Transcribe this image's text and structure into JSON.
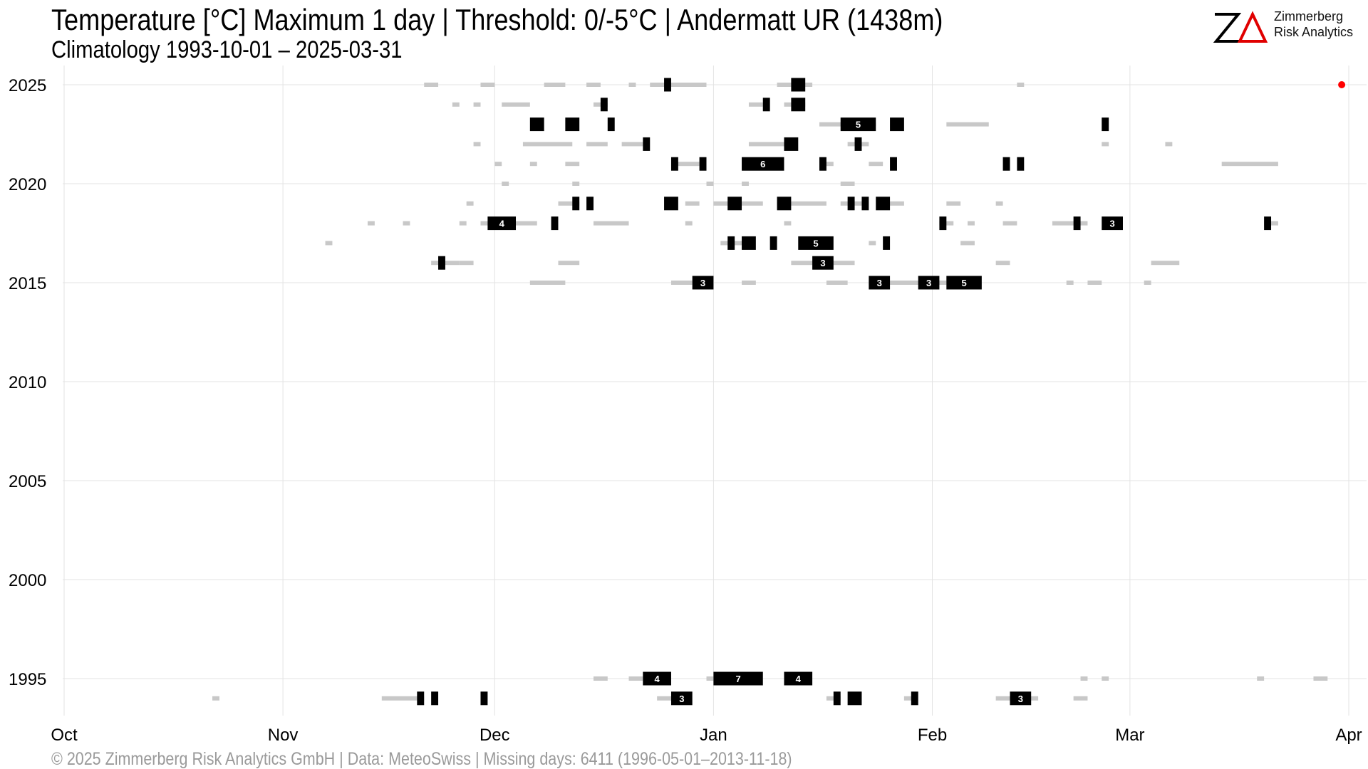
{
  "header": {
    "title": "Temperature [°C] Maximum 1 day | Threshold: 0/-5°C | Andermatt  UR (1438m)",
    "subtitle": "Climatology 1993-10-01 – 2025-03-31"
  },
  "logo": {
    "mark": "ZΔ",
    "line1": "Zimmerberg",
    "line2": "Risk Analytics"
  },
  "footer": {
    "text": "©  2025 Zimmerberg Risk Analytics GmbH | Data: MeteoSwiss | Missing days: 6411 (1996-05-01–2013-11-18)"
  },
  "colors": {
    "major": "#000000",
    "minor": "#c8c8c8",
    "grid": "#e3e3e3",
    "latest": "#ff0000",
    "label": "#ffffff"
  },
  "chart_data": {
    "type": "timeline",
    "x_axis": {
      "ticks": [
        "Oct",
        "Nov",
        "Dec",
        "Jan",
        "Feb",
        "Mar",
        "Apr"
      ],
      "tick_days": [
        0,
        31,
        61,
        92,
        123,
        151,
        182
      ],
      "range_days": [
        0,
        182
      ]
    },
    "y_axis": {
      "ticks": [
        1995,
        2000,
        2005,
        2010,
        2015,
        2020,
        2025
      ],
      "range": [
        1993.3,
        2025.6
      ]
    },
    "grid": true,
    "latest_point": {
      "season": 2025,
      "day": 181
    },
    "series": [
      {
        "name": "0°C",
        "style": "minor",
        "events": [
          [
            2025,
            51,
            53
          ],
          [
            2025,
            59,
            61
          ],
          [
            2025,
            68,
            71
          ],
          [
            2025,
            74,
            76
          ],
          [
            2025,
            80,
            81
          ],
          [
            2025,
            83,
            91
          ],
          [
            2025,
            101,
            106
          ],
          [
            2025,
            135,
            136
          ],
          [
            2024,
            55,
            56
          ],
          [
            2024,
            58,
            59
          ],
          [
            2024,
            62,
            66
          ],
          [
            2024,
            75,
            77
          ],
          [
            2024,
            97,
            99
          ],
          [
            2024,
            102,
            105
          ],
          [
            2023,
            107,
            115
          ],
          [
            2023,
            125,
            131
          ],
          [
            2022,
            58,
            59
          ],
          [
            2022,
            65,
            72
          ],
          [
            2022,
            74,
            77
          ],
          [
            2022,
            79,
            82
          ],
          [
            2022,
            97,
            102
          ],
          [
            2022,
            111,
            114
          ],
          [
            2022,
            147,
            148
          ],
          [
            2022,
            156,
            157
          ],
          [
            2021,
            61,
            62
          ],
          [
            2021,
            66,
            67
          ],
          [
            2021,
            71,
            73
          ],
          [
            2021,
            86,
            90
          ],
          [
            2021,
            97,
            99
          ],
          [
            2021,
            107,
            109
          ],
          [
            2021,
            114,
            116
          ],
          [
            2021,
            164,
            172
          ],
          [
            2020,
            62,
            63
          ],
          [
            2020,
            72,
            73
          ],
          [
            2020,
            91,
            92
          ],
          [
            2020,
            96,
            97
          ],
          [
            2020,
            110,
            112
          ],
          [
            2019,
            57,
            58
          ],
          [
            2019,
            70,
            73
          ],
          [
            2019,
            88,
            90
          ],
          [
            2019,
            92,
            99
          ],
          [
            2019,
            101,
            108
          ],
          [
            2019,
            110,
            113
          ],
          [
            2019,
            116,
            119
          ],
          [
            2019,
            125,
            127
          ],
          [
            2019,
            132,
            133
          ],
          [
            2018,
            43,
            44
          ],
          [
            2018,
            48,
            49
          ],
          [
            2018,
            56,
            57
          ],
          [
            2018,
            59,
            67
          ],
          [
            2018,
            75,
            80
          ],
          [
            2018,
            88,
            89
          ],
          [
            2018,
            102,
            103
          ],
          [
            2018,
            124,
            126
          ],
          [
            2018,
            128,
            129
          ],
          [
            2018,
            133,
            135
          ],
          [
            2018,
            140,
            145
          ],
          [
            2018,
            149,
            150
          ],
          [
            2018,
            170,
            172
          ],
          [
            2017,
            37,
            38
          ],
          [
            2017,
            93,
            97
          ],
          [
            2017,
            114,
            115
          ],
          [
            2017,
            127,
            129
          ],
          [
            2016,
            52,
            56
          ],
          [
            2016,
            56,
            58
          ],
          [
            2016,
            70,
            73
          ],
          [
            2016,
            103,
            112
          ],
          [
            2016,
            132,
            134
          ],
          [
            2016,
            154,
            158
          ],
          [
            2015,
            66,
            71
          ],
          [
            2015,
            86,
            89
          ],
          [
            2015,
            96,
            98
          ],
          [
            2015,
            108,
            111
          ],
          [
            2015,
            114,
            125
          ],
          [
            2015,
            142,
            143
          ],
          [
            2015,
            145,
            147
          ],
          [
            2015,
            153,
            154
          ],
          [
            1995,
            75,
            77
          ],
          [
            1995,
            80,
            82
          ],
          [
            1995,
            91,
            93
          ],
          [
            1995,
            144,
            145
          ],
          [
            1995,
            147,
            148
          ],
          [
            1995,
            169,
            170
          ],
          [
            1995,
            177,
            179
          ],
          [
            1994,
            21,
            22
          ],
          [
            1994,
            45,
            51
          ],
          [
            1994,
            84,
            86
          ],
          [
            1994,
            108,
            110
          ],
          [
            1994,
            119,
            120
          ],
          [
            1994,
            132,
            138
          ],
          [
            1994,
            143,
            145
          ]
        ]
      },
      {
        "name": "-5°C",
        "style": "major",
        "events": [
          [
            2025,
            85,
            86,
            1
          ],
          [
            2025,
            103,
            105,
            1
          ],
          [
            2024,
            76,
            77,
            1
          ],
          [
            2024,
            99,
            100,
            1
          ],
          [
            2024,
            103,
            105,
            1
          ],
          [
            2023,
            66,
            68,
            1
          ],
          [
            2023,
            71,
            73,
            1
          ],
          [
            2023,
            77,
            78,
            1
          ],
          [
            2023,
            110,
            115,
            5
          ],
          [
            2023,
            117,
            119,
            1
          ],
          [
            2023,
            147,
            148,
            1
          ],
          [
            2022,
            82,
            83,
            1
          ],
          [
            2022,
            102,
            104,
            1
          ],
          [
            2022,
            112,
            113,
            1
          ],
          [
            2021,
            86,
            87,
            1
          ],
          [
            2021,
            90,
            91,
            1
          ],
          [
            2021,
            96,
            102,
            6
          ],
          [
            2021,
            107,
            108,
            1
          ],
          [
            2021,
            117,
            118,
            1
          ],
          [
            2021,
            133,
            134,
            1
          ],
          [
            2021,
            135,
            136,
            1
          ],
          [
            2019,
            72,
            73,
            1
          ],
          [
            2019,
            74,
            75,
            1
          ],
          [
            2019,
            85,
            87,
            1
          ],
          [
            2019,
            94,
            96,
            1
          ],
          [
            2019,
            101,
            103,
            1
          ],
          [
            2019,
            111,
            112,
            1
          ],
          [
            2019,
            113,
            114,
            1
          ],
          [
            2019,
            115,
            117,
            1
          ],
          [
            2018,
            60,
            64,
            4
          ],
          [
            2018,
            69,
            70,
            1
          ],
          [
            2018,
            124,
            125,
            1
          ],
          [
            2018,
            143,
            144,
            1
          ],
          [
            2018,
            147,
            150,
            3
          ],
          [
            2018,
            170,
            171,
            1
          ],
          [
            2017,
            94,
            95,
            1
          ],
          [
            2017,
            96,
            98,
            1
          ],
          [
            2017,
            100,
            101,
            1
          ],
          [
            2017,
            104,
            109,
            5
          ],
          [
            2017,
            116,
            117,
            1
          ],
          [
            2016,
            53,
            54,
            1
          ],
          [
            2016,
            106,
            109,
            3
          ],
          [
            2015,
            89,
            92,
            3
          ],
          [
            2015,
            114,
            117,
            3
          ],
          [
            2015,
            121,
            124,
            3
          ],
          [
            2015,
            125,
            130,
            5
          ],
          [
            1995,
            82,
            86,
            4
          ],
          [
            1995,
            92,
            99,
            7
          ],
          [
            1995,
            102,
            106,
            4
          ],
          [
            1994,
            50,
            51,
            1
          ],
          [
            1994,
            52,
            53,
            1
          ],
          [
            1994,
            59,
            60,
            1
          ],
          [
            1994,
            86,
            89,
            3
          ],
          [
            1994,
            109,
            110,
            1
          ],
          [
            1994,
            111,
            113,
            1
          ],
          [
            1994,
            120,
            121,
            1
          ],
          [
            1994,
            134,
            137,
            3
          ]
        ]
      }
    ]
  }
}
